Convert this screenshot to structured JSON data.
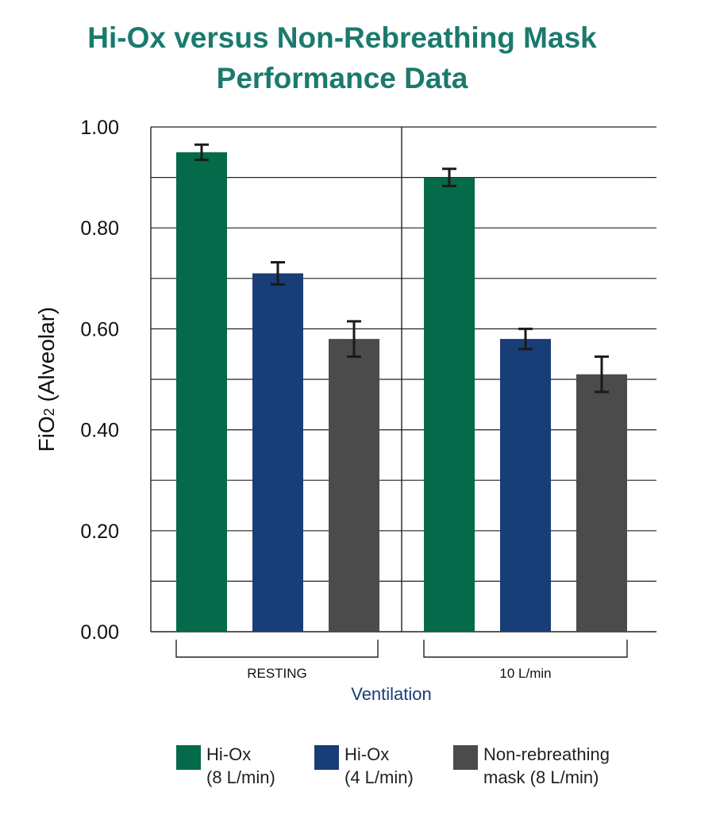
{
  "chart_data": {
    "type": "bar",
    "title_lines": [
      "Hi-Ox versus Non-Rebreathing Mask",
      "Performance Data"
    ],
    "ylabel_main": "FiO",
    "ylabel_sub": "2",
    "ylabel_rest": " (Alveolar)",
    "xlabel": "Ventilation",
    "ylim": [
      0,
      1.0
    ],
    "yticks": [
      "0.00",
      "0.20",
      "0.40",
      "0.60",
      "0.80",
      "1.00"
    ],
    "categories": [
      "RESTING",
      "10 L/min"
    ],
    "series": [
      {
        "name_lines": [
          "Hi-Ox",
          "(8 L/min)"
        ],
        "color": "#046a4a",
        "values": [
          0.95,
          0.9
        ],
        "error": [
          0.015,
          0.017
        ]
      },
      {
        "name_lines": [
          "Hi-Ox",
          "(4 L/min)"
        ],
        "color": "#193d77",
        "values": [
          0.71,
          0.58
        ],
        "error": [
          0.022,
          0.02
        ]
      },
      {
        "name_lines": [
          "Non-rebreathing",
          "mask (8 L/min)"
        ],
        "color": "#4b4b4b",
        "values": [
          0.58,
          0.51
        ],
        "error": [
          0.035,
          0.035
        ]
      }
    ],
    "grid": true,
    "legend_position": "bottom"
  }
}
